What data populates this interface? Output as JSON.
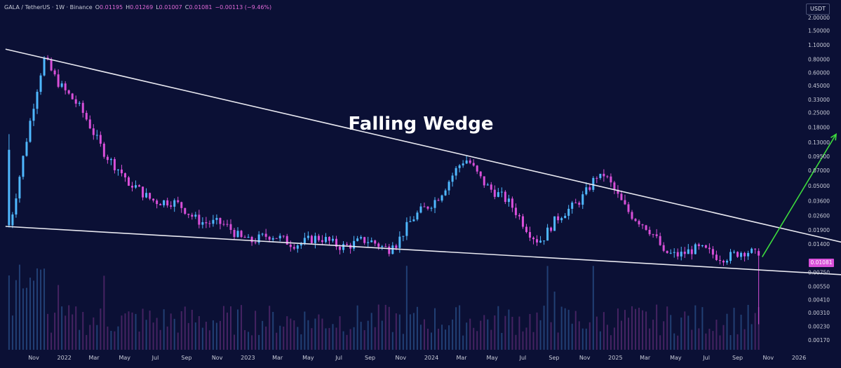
{
  "legend": {
    "symbol": "GALA / TetherUS · 1W · Binance",
    "o_label": "O",
    "o_value": "0.01195",
    "h_label": "H",
    "h_value": "0.01269",
    "l_label": "L",
    "l_value": "0.01007",
    "c_label": "C",
    "c_value": "0.01081",
    "change": "−0.00113 (−9.46%)"
  },
  "currency": "USDT",
  "last_price_label": "0.01081",
  "chart_data": {
    "type": "candlestick",
    "title": "Falling Wedge",
    "yscale": "log",
    "ylim": [
      0.0015,
      2.6
    ],
    "y_tick_labels": [
      "2.00000",
      "1.50000",
      "1.10000",
      "0.80000",
      "0.60000",
      "0.45000",
      "0.33000",
      "0.25000",
      "0.18000",
      "0.13000",
      "0.09500",
      "0.07000",
      "0.05000",
      "0.03600",
      "0.02600",
      "0.01900",
      "0.01400",
      "0.01081",
      "0.00750",
      "0.00550",
      "0.00410",
      "0.00310",
      "0.00230",
      "0.00170"
    ],
    "x_tick_labels": [
      "Nov",
      "2022",
      "Mar",
      "May",
      "Jul",
      "Sep",
      "Nov",
      "2023",
      "Mar",
      "May",
      "Jul",
      "Sep",
      "Nov",
      "2024",
      "Mar",
      "May",
      "Jul",
      "Sep",
      "Nov",
      "2025",
      "Mar",
      "May",
      "Jul",
      "Sep",
      "Nov",
      "2026"
    ],
    "xlim": [
      "2021-09",
      "2026-04"
    ],
    "colors": {
      "up": "#4fb8ff",
      "down": "#d84fd8",
      "lines": "#e8e8f0",
      "arrow": "#3ddc3d"
    },
    "key_points": [
      {
        "date": "2021-09-13",
        "price": 0.021
      },
      {
        "date": "2021-11-22",
        "price": 0.83
      },
      {
        "date": "2022-05-09",
        "price": 0.05
      },
      {
        "date": "2022-12-26",
        "price": 0.016
      },
      {
        "date": "2023-10-16",
        "price": 0.0135
      },
      {
        "date": "2024-03-11",
        "price": 0.087
      },
      {
        "date": "2024-08-05",
        "price": 0.015
      },
      {
        "date": "2024-12-02",
        "price": 0.065
      },
      {
        "date": "2025-04-07",
        "price": 0.012
      },
      {
        "date": "2025-10-13",
        "price": 0.01081
      }
    ],
    "upper_trendline": [
      {
        "date": "2021-09-06",
        "price": 1.0
      },
      {
        "date": "2026-03-30",
        "price": 0.0144
      }
    ],
    "lower_trendline": [
      {
        "date": "2021-09-06",
        "price": 0.0205
      },
      {
        "date": "2026-03-30",
        "price": 0.0071
      }
    ],
    "projection_arrow": [
      {
        "date": "2025-10-20",
        "price": 0.0105
      },
      {
        "date": "2026-03-16",
        "price": 0.155
      }
    ]
  }
}
